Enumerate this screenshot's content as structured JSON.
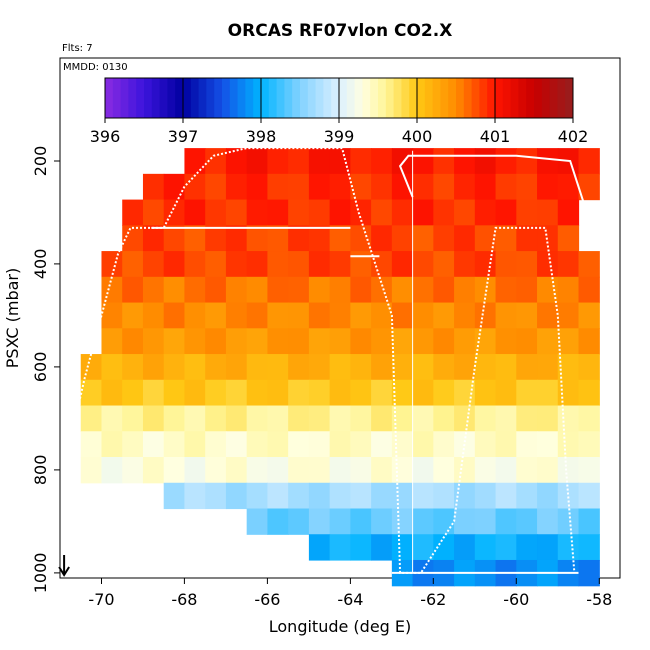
{
  "chart_data": {
    "type": "heatmap",
    "title": "ORCAS RF07vlon CO2.X",
    "note_flights": "Flts: 7",
    "note_date": "MMDD: 0130",
    "xlabel": "Longitude (deg E)",
    "ylabel": "PSXC (mbar)",
    "xlim": [
      -71.0,
      -57.5
    ],
    "ylim": [
      1010,
      0
    ],
    "x_ticks": [
      -70,
      -68,
      -66,
      -64,
      -62,
      -60,
      -58
    ],
    "x_tick_labels": [
      "-70",
      "-68",
      "-66",
      "-64",
      "-62",
      "-60",
      "-58"
    ],
    "y_ticks": [
      200,
      400,
      600,
      800,
      1000
    ],
    "y_tick_labels": [
      "200",
      "400",
      "600",
      "800",
      "1000"
    ],
    "colorbar": {
      "range": [
        396,
        402
      ],
      "ticks": [
        396,
        397,
        398,
        399,
        400,
        401,
        402
      ],
      "tick_labels": [
        "396",
        "397",
        "398",
        "399",
        "400",
        "401",
        "402"
      ]
    },
    "grid": {
      "dx": 0.5,
      "dp": 50,
      "rows": [
        {
          "p": 200,
          "x0": -68.0,
          "x1": -58.0,
          "v": 401.0
        },
        {
          "p": 250,
          "x0": -69.0,
          "x1": -58.0,
          "v": 400.9
        },
        {
          "p": 300,
          "x0": -69.5,
          "x1": -58.5,
          "v": 400.9
        },
        {
          "p": 350,
          "x0": -69.5,
          "x1": -58.5,
          "v": 400.8
        },
        {
          "p": 400,
          "x0": -70.0,
          "x1": -58.0,
          "v": 400.8
        },
        {
          "p": 450,
          "x0": -70.0,
          "x1": -58.0,
          "v": 400.6
        },
        {
          "p": 500,
          "x0": -70.0,
          "x1": -58.0,
          "v": 400.5
        },
        {
          "p": 550,
          "x0": -70.0,
          "x1": -58.0,
          "v": 400.4
        },
        {
          "p": 600,
          "x0": -70.5,
          "x1": -58.0,
          "v": 400.2
        },
        {
          "p": 650,
          "x0": -70.5,
          "x1": -58.0,
          "v": 400.0
        },
        {
          "p": 700,
          "x0": -70.5,
          "x1": -58.0,
          "v": 399.6
        },
        {
          "p": 750,
          "x0": -70.5,
          "x1": -58.0,
          "v": 399.4
        },
        {
          "p": 800,
          "x0": -70.5,
          "x1": -58.0,
          "v": 399.3
        },
        {
          "p": 850,
          "x0": -68.5,
          "x1": -58.0,
          "v": 398.7
        },
        {
          "p": 900,
          "x0": -66.5,
          "x1": -58.0,
          "v": 398.4
        },
        {
          "p": 950,
          "x0": -65.0,
          "x1": -58.0,
          "v": 398.0
        },
        {
          "p": 1000,
          "x0": -63.0,
          "x1": -58.0,
          "v": 397.8
        }
      ]
    },
    "flight_track": [
      [
        -70.8,
        760
      ],
      [
        -70.4,
        620
      ],
      [
        -70.0,
        500
      ],
      [
        -69.6,
        380
      ],
      [
        -69.3,
        330
      ],
      [
        -68.5,
        330
      ],
      [
        -68.0,
        250
      ],
      [
        -67.3,
        190
      ],
      [
        -66.5,
        175
      ],
      [
        -64.2,
        175
      ],
      [
        -63.8,
        300
      ],
      [
        -63.0,
        500
      ],
      [
        -62.8,
        1000
      ],
      [
        -62.3,
        1000
      ],
      [
        -61.5,
        900
      ],
      [
        -61.0,
        600
      ],
      [
        -60.5,
        330
      ],
      [
        -59.3,
        330
      ],
      [
        -59.0,
        500
      ],
      [
        -58.8,
        800
      ],
      [
        -58.6,
        1000
      ]
    ],
    "upper_track": [
      [
        -62.5,
        270
      ],
      [
        -62.8,
        210
      ],
      [
        -62.6,
        190
      ],
      [
        -60.0,
        190
      ],
      [
        -58.7,
        200
      ],
      [
        -58.5,
        250
      ],
      [
        -58.3,
        300
      ]
    ],
    "level_legs": [
      {
        "p": 330,
        "x0": -68.8,
        "x1": -64.0
      },
      {
        "p": 385,
        "x0": -64.0,
        "x1": -63.3
      },
      {
        "p": 1000,
        "x0": -63.0,
        "x1": -58.5
      }
    ],
    "vertical_marker_x": -62.5,
    "arrow_marker_x": -70.9
  }
}
